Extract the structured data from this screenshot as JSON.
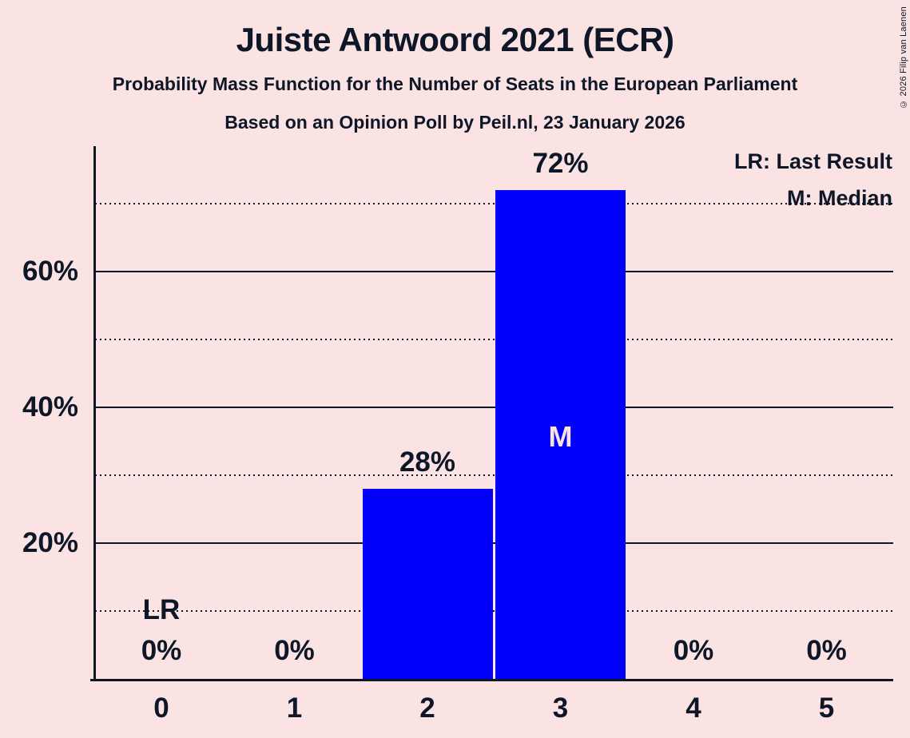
{
  "chart_data": {
    "type": "bar",
    "title": "Juiste Antwoord 2021 (ECR)",
    "subtitle1": "Probability Mass Function for the Number of Seats in the European Parliament",
    "subtitle2": "Based on an Opinion Poll by Peil.nl, 23 January 2026",
    "categories": [
      "0",
      "1",
      "2",
      "3",
      "4",
      "5"
    ],
    "values": [
      0,
      0,
      28,
      72,
      0,
      0
    ],
    "bar_labels": [
      "0%",
      "0%",
      "28%",
      "72%",
      "0%",
      "0%"
    ],
    "ylim": [
      0,
      78.5
    ],
    "ytick_values": [
      20,
      40,
      60
    ],
    "ytick_labels": [
      "20%",
      "40%",
      "60%"
    ],
    "grid_dotted_values": [
      10,
      30,
      50,
      70
    ],
    "grid_solid_values": [
      20,
      40,
      60
    ],
    "legend": {
      "lr": "LR: Last Result",
      "m": "M: Median"
    },
    "lr_label": "LR",
    "lr_seat": 0,
    "median_label": "M",
    "median_seat": 3,
    "copyright": "© 2026 Filip van Laenen",
    "colors": {
      "background": "#fbe3e3",
      "bar": "#0101fb",
      "text": "#0e1728"
    }
  }
}
